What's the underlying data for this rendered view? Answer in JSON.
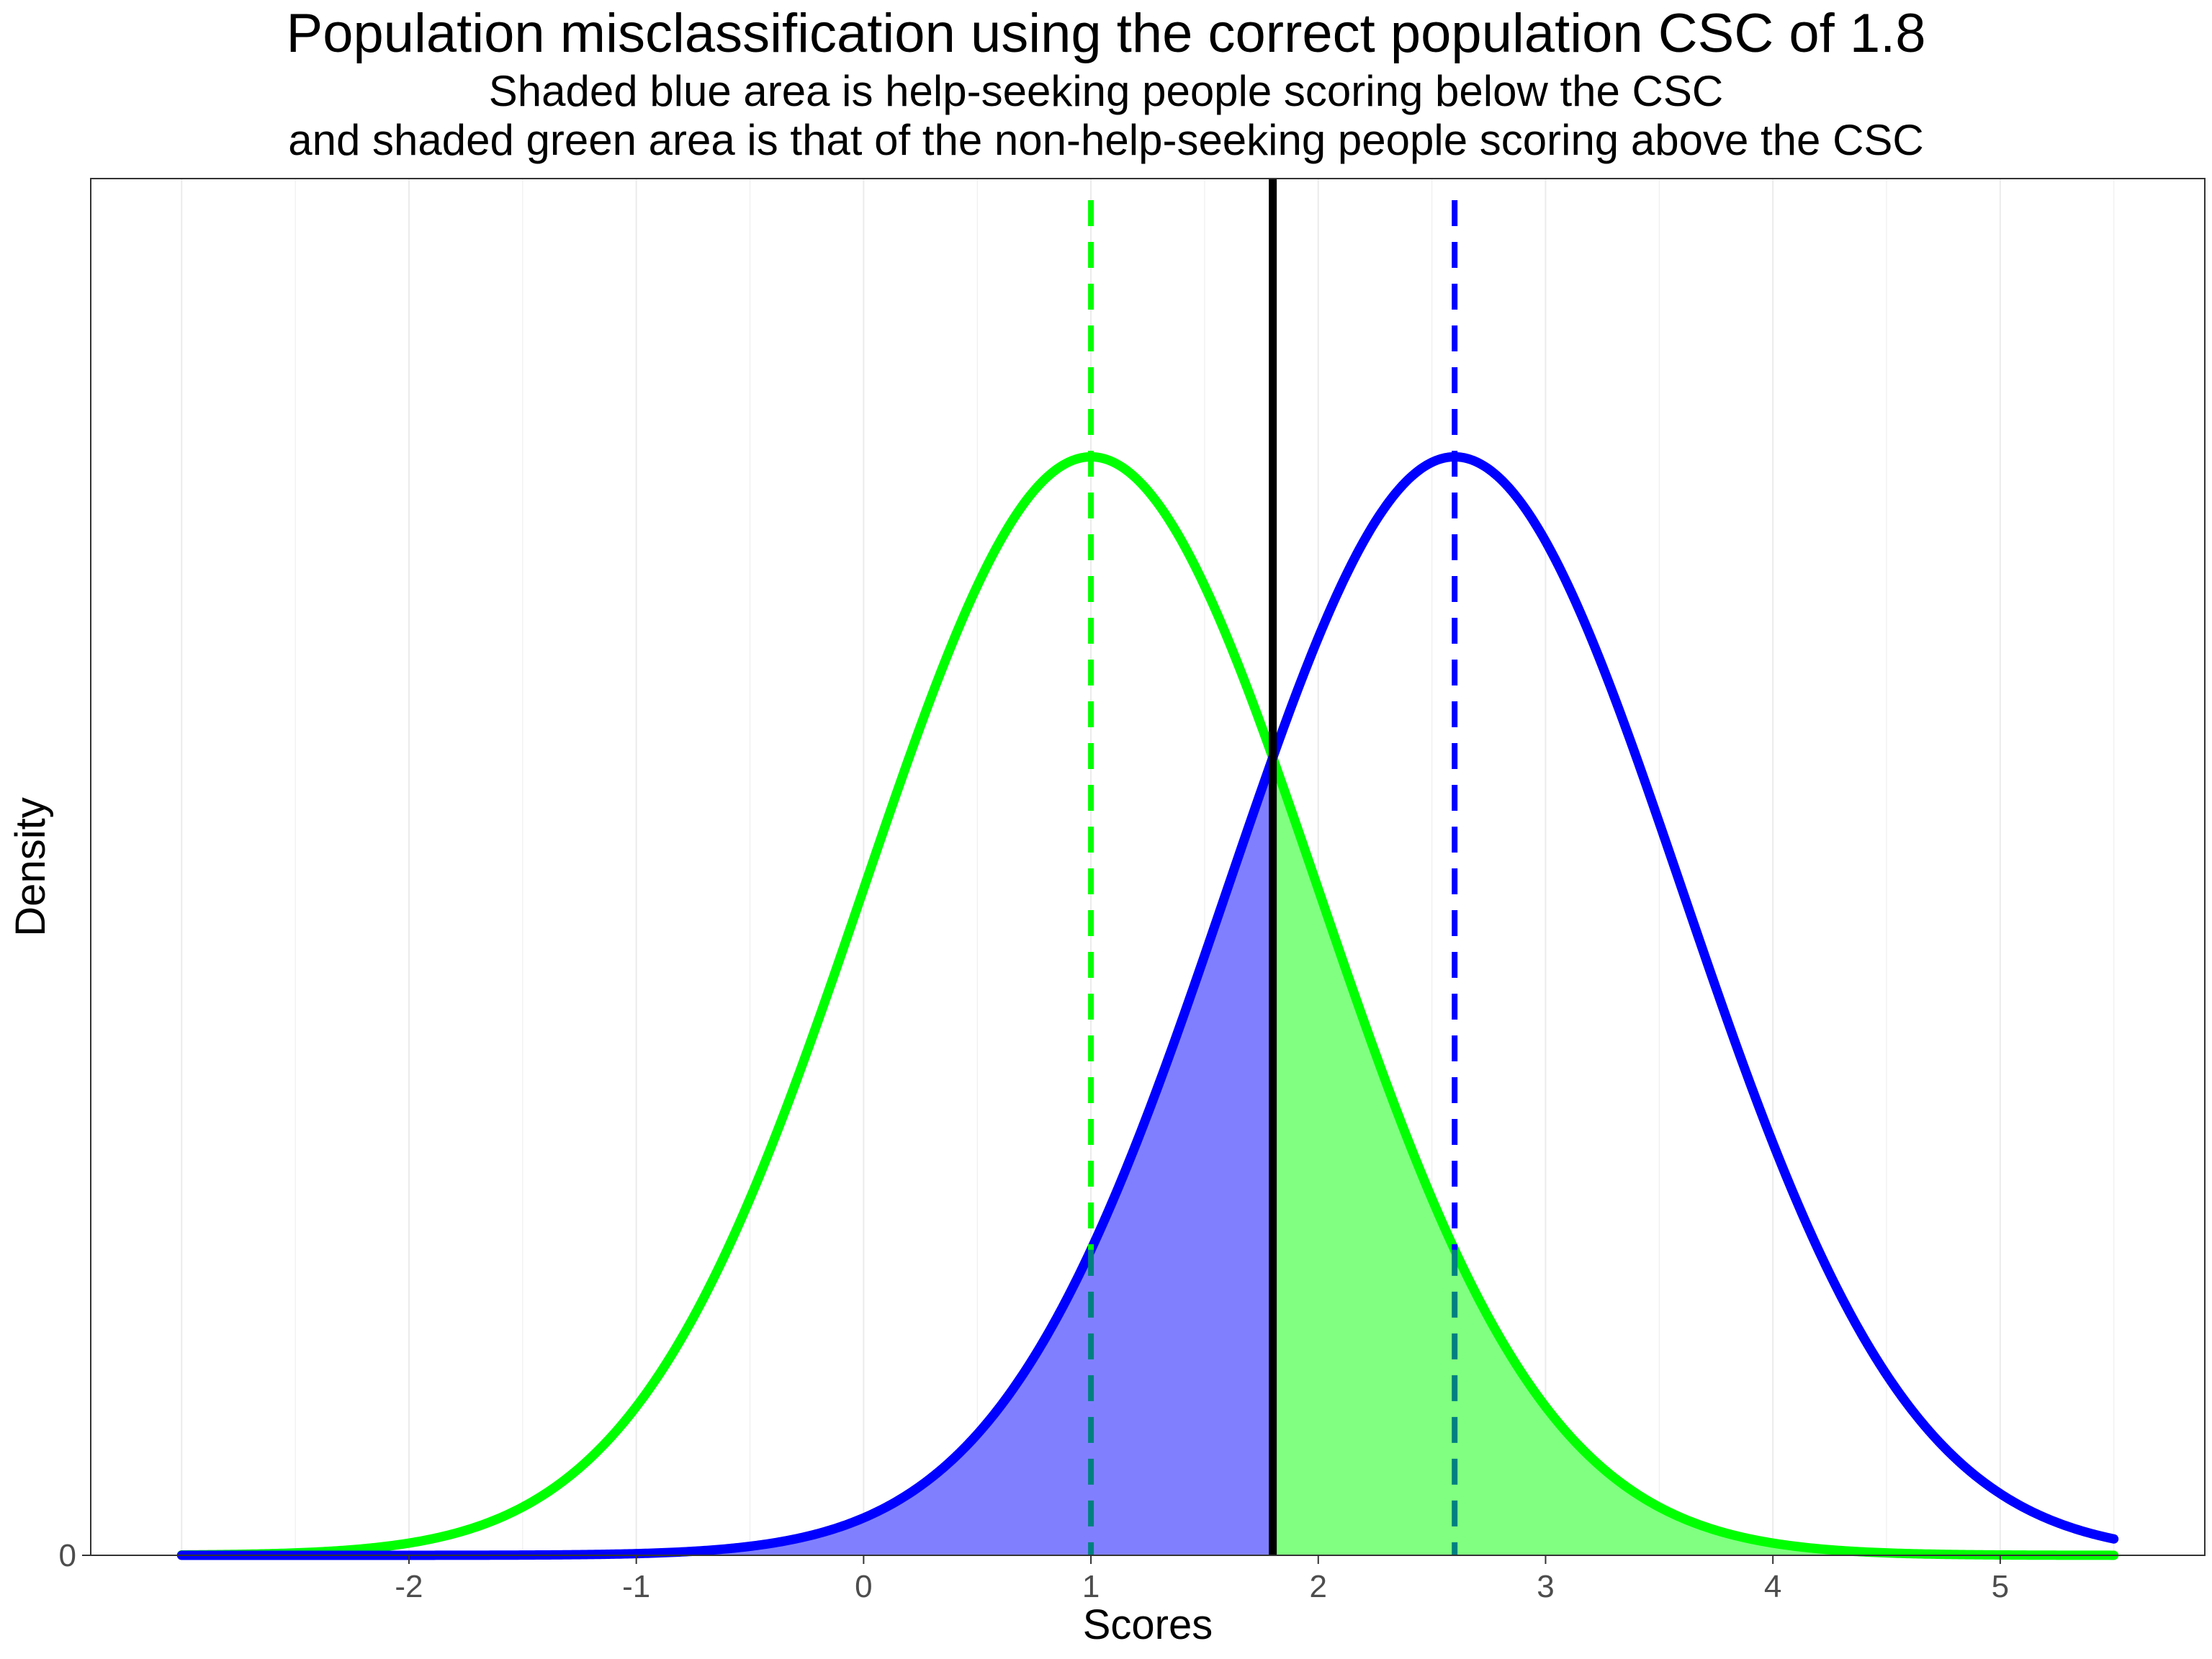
{
  "chart_data": {
    "type": "area",
    "title": "Population misclassification using the correct population CSC of 1.8",
    "subtitle": "Shaded blue area is help-seeking people scoring below the CSC",
    "subtitle2": "and shaded green area is that of  the non-help-seeking people scoring above the CSC",
    "xlabel": "Scores",
    "ylabel": "Density",
    "xlim": [
      -3.4,
      5.9
    ],
    "ylim": [
      0,
      0.5
    ],
    "x_ticks": [
      -2,
      -1,
      0,
      1,
      2,
      3,
      4,
      5
    ],
    "y_ticks": [
      0
    ],
    "grid": true,
    "legend": "none",
    "csc": 1.8,
    "series": [
      {
        "kind": "normal-density",
        "mean": 1.0,
        "sd": 1.0,
        "x_range": [
          -3,
          5.5
        ],
        "color": "#00ff00",
        "mean_line_color": "#00ff00",
        "shade_from": 1.8,
        "shade_color": "#80ff80"
      },
      {
        "kind": "normal-density",
        "mean": 2.6,
        "sd": 1.0,
        "x_range": [
          -3,
          5.5
        ],
        "color": "#0000ff",
        "mean_line_color": "#0000ff",
        "shade_to": 1.8,
        "shade_color": "#8080ff"
      }
    ],
    "colors": {
      "csc_line": "#000000",
      "overlap_dash": "#008080",
      "panel_border": "#333333",
      "grid": "#ebebeb"
    }
  }
}
